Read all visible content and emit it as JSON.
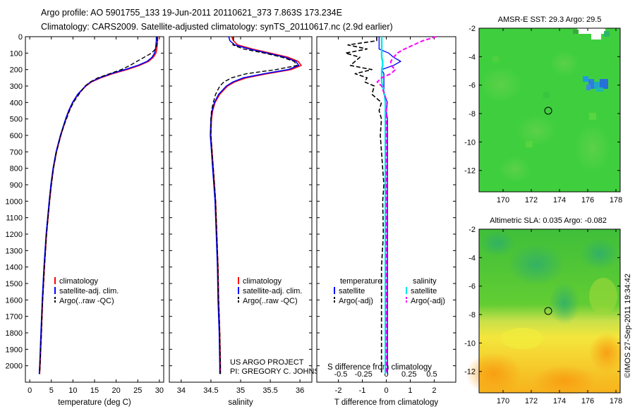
{
  "header": {
    "line1": "Argo profile: AO 5901755_133 19-Jun-2011 20110621_373 7.863S 173.234E",
    "line2": "Climatology: CARS2009. Satellite-adjusted climatology: synTS_20110617.nc (2.9d earlier)"
  },
  "colors": {
    "climatology": "#ff0000",
    "satellite": "#0000ff",
    "argo": "#000000",
    "s_satellite": "#00e5ee",
    "s_argo": "#ff00ff"
  },
  "chart_data": [
    {
      "type": "line",
      "title": "",
      "xlabel": "temperature (deg C)",
      "ylabel": "",
      "xlim": [
        -1,
        31
      ],
      "ylim": [
        2100,
        0
      ],
      "x_ticks": [
        "0",
        "5",
        "10",
        "15",
        "20",
        "25",
        "30"
      ],
      "y_ticks": [
        "0",
        "100",
        "200",
        "300",
        "400",
        "500",
        "600",
        "700",
        "800",
        "900",
        "1000",
        "1100",
        "1200",
        "1300",
        "1400",
        "1500",
        "1600",
        "1700",
        "1800",
        "1900",
        "2000"
      ],
      "legend": [
        "climatology",
        "satellite-adj. clim.",
        "Argo(..raw -QC)"
      ],
      "depth": [
        0,
        25,
        50,
        75,
        100,
        125,
        150,
        175,
        200,
        225,
        250,
        275,
        300,
        350,
        400,
        450,
        500,
        550,
        600,
        700,
        800,
        900,
        1000,
        1200,
        1400,
        1600,
        1800,
        2000,
        2050
      ],
      "series": [
        {
          "name": "climatology",
          "values": [
            29.6,
            29.6,
            29.5,
            29.4,
            29.2,
            28.6,
            27.5,
            25.4,
            22.5,
            19.2,
            16.5,
            14.3,
            13,
            11.2,
            10,
            9.1,
            8.4,
            7.8,
            7.2,
            6.2,
            5.5,
            5,
            4.6,
            3.9,
            3.4,
            3,
            2.7,
            2.4,
            2.3
          ]
        },
        {
          "name": "satellite-adj. clim.",
          "values": [
            29.3,
            29.3,
            29.2,
            29.1,
            28.9,
            28.3,
            27.2,
            25,
            22,
            18.8,
            16.2,
            14.1,
            12.9,
            11.1,
            9.9,
            9,
            8.3,
            7.7,
            7.1,
            6.1,
            5.4,
            4.9,
            4.5,
            3.8,
            3.3,
            2.9,
            2.6,
            2.3,
            2.2
          ]
        },
        {
          "name": "Argo(..raw -QC)",
          "values": [
            29.5,
            29.5,
            29.4,
            29.1,
            28.2,
            26.5,
            24.8,
            23.2,
            21.2,
            18.5,
            15.8,
            14,
            12.8,
            11.4,
            10.1,
            9.2,
            8.5,
            7.8,
            7.2,
            6.2,
            5.5,
            5,
            4.6,
            3.9,
            3.4,
            3,
            2.7,
            2.4,
            2.3
          ]
        }
      ]
    },
    {
      "type": "line",
      "title": "",
      "xlabel": "salinity",
      "xlim": [
        33.8,
        36.2
      ],
      "ylim": [
        2100,
        0
      ],
      "x_ticks": [
        "34",
        "34.5",
        "35",
        "35.5",
        "36"
      ],
      "legend": [
        "climatology",
        "satellite-adj. clim.",
        "Argo(..raw -QC)"
      ],
      "depth": [
        0,
        25,
        50,
        75,
        100,
        125,
        150,
        175,
        200,
        225,
        250,
        275,
        300,
        350,
        400,
        450,
        500,
        600,
        700,
        800,
        900,
        1000,
        1200,
        1400,
        1600,
        1800,
        2000,
        2050
      ],
      "series": [
        {
          "name": "climatology",
          "values": [
            34.85,
            34.88,
            34.95,
            35.2,
            35.5,
            35.8,
            35.97,
            36.02,
            35.85,
            35.45,
            35.1,
            34.9,
            34.78,
            34.65,
            34.57,
            34.53,
            34.51,
            34.5,
            34.52,
            34.54,
            34.56,
            34.58,
            34.6,
            34.62,
            34.63,
            34.65,
            34.66,
            34.66
          ]
        },
        {
          "name": "satellite-adj. clim.",
          "values": [
            34.8,
            34.82,
            34.9,
            35.15,
            35.45,
            35.75,
            35.93,
            35.98,
            35.8,
            35.4,
            35.05,
            34.87,
            34.76,
            34.63,
            34.56,
            34.52,
            34.5,
            34.49,
            34.51,
            34.53,
            34.55,
            34.57,
            34.59,
            34.61,
            34.62,
            34.64,
            34.65,
            34.65
          ]
        },
        {
          "name": "Argo(..raw -QC)",
          "values": [
            34.88,
            34.88,
            34.87,
            35.05,
            35.4,
            35.7,
            35.9,
            35.95,
            35.6,
            35.1,
            34.85,
            34.72,
            34.65,
            34.58,
            34.54,
            34.51,
            34.5,
            34.5,
            34.52,
            34.54,
            34.56,
            34.58,
            34.6,
            34.62,
            34.63,
            34.65,
            34.66,
            34.66
          ]
        }
      ],
      "annotations": [
        "US ARGO PROJECT",
        "PI: GREGORY C. JOHNSON"
      ]
    },
    {
      "type": "line",
      "title": "",
      "xlabel": "T difference from climatology",
      "xlabel_top": "S difference from climatology",
      "xlim": [
        -2.9,
        2.9
      ],
      "ylim": [
        2100,
        0
      ],
      "x_ticks": [
        "-2",
        "-1",
        "0",
        "1",
        "2"
      ],
      "s_ticks": [
        "-0.5",
        "-0.25",
        "0",
        "0.25",
        "0.5"
      ],
      "legend_temperature_title": "temperature",
      "legend_salinity_title": "salinity",
      "legend": [
        "satellite",
        "Argo(-adj)",
        "satellite",
        "Argo(-adj)"
      ],
      "depth": [
        0,
        25,
        50,
        75,
        100,
        125,
        150,
        175,
        200,
        225,
        250,
        275,
        300,
        350,
        400,
        450,
        500,
        600,
        700,
        800,
        900,
        1000,
        1200,
        1400,
        1600,
        1800,
        2000,
        2050
      ],
      "series": [
        {
          "name": "T satellite",
          "values": [
            -0.3,
            -0.3,
            -0.3,
            -0.3,
            0.1,
            0.3,
            0.6,
            0.3,
            -0.2,
            -0.1,
            -0.1,
            -0.1,
            -0.1,
            -0.1,
            0.05,
            0,
            0.05,
            0.05,
            0.05,
            0.05,
            0.05,
            0.05,
            0.05,
            0.05,
            0.05,
            0.05,
            0.05,
            0.05
          ]
        },
        {
          "name": "T Argo(-adj)",
          "values": [
            -0.4,
            -0.4,
            -1.6,
            -0.8,
            -1.7,
            -1.1,
            -1.3,
            -1.5,
            -0.6,
            -1.3,
            -0.8,
            -0.9,
            -0.5,
            -0.6,
            -0.2,
            -0.3,
            -0.2,
            -0.25,
            -0.2,
            -0.15,
            -0.1,
            -0.15,
            -0.12,
            -0.2,
            -0.2,
            -0.2,
            -0.2,
            -0.2
          ]
        },
        {
          "name": "S satellite",
          "values": [
            -0.05,
            -0.05,
            -0.05,
            -0.05,
            -0.05,
            -0.05,
            -0.04,
            -0.04,
            -0.05,
            -0.05,
            -0.05,
            -0.05,
            -0.04,
            -0.02,
            -0.01,
            -0.01,
            -0.01,
            -0.01,
            -0.01,
            -0.01,
            -0.01,
            -0.01,
            -0.01,
            -0.01,
            -0.01,
            -0.01,
            -0.01,
            -0.01
          ]
        },
        {
          "name": "S Argo(-adj)",
          "values": [
            0.55,
            0.4,
            0.3,
            0.2,
            0.12,
            0.08,
            0.05,
            0.05,
            0.1,
            0.05,
            -0.05,
            -0.1,
            -0.05,
            -0.02,
            0.01,
            0,
            0,
            0,
            0,
            0,
            0,
            0,
            0,
            0,
            0,
            0,
            0,
            0
          ]
        }
      ]
    },
    {
      "type": "heatmap",
      "title": "AMSR-E SST: 29.3 Argo: 29.5",
      "xlim": [
        168.3,
        178.3
      ],
      "ylim": [
        -13.5,
        -2
      ],
      "x_ticks": [
        "170",
        "172",
        "174",
        "176",
        "178"
      ],
      "y_ticks": [
        "-2",
        "-4",
        "-6",
        "-8",
        "-10",
        "-12"
      ],
      "profile_marker": {
        "lon": 173.234,
        "lat": -7.863
      }
    },
    {
      "type": "heatmap",
      "title": "Altimetric SLA: 0.035 Argo: -0.082",
      "xlim": [
        168.3,
        178.3
      ],
      "ylim": [
        -13.5,
        -2
      ],
      "x_ticks": [
        "170",
        "172",
        "174",
        "176",
        "178"
      ],
      "y_ticks": [
        "-2",
        "-4",
        "-6",
        "-8",
        "-10",
        "-12"
      ],
      "profile_marker": {
        "lon": 173.234,
        "lat": -7.863
      }
    }
  ],
  "footer": {
    "credit": "©IMOS 27-Sep-2011 19:34:42"
  }
}
